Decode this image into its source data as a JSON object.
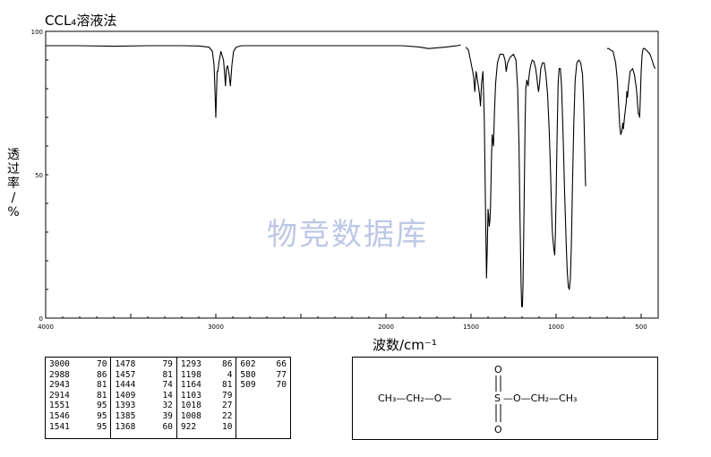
{
  "header": {
    "title": "CCL₄溶液法"
  },
  "chart_data": {
    "type": "line",
    "title": "CCL₄溶液法",
    "xlabel": "波数/cm⁻¹",
    "ylabel": "透过率",
    "ylabel_prefix": "%/",
    "xlim": [
      4000,
      400
    ],
    "ylim": [
      0,
      100
    ],
    "x_ticks": [
      4000,
      3500,
      3000,
      2500,
      2000,
      1500,
      1000,
      500
    ],
    "x_tick_labels": [
      "4000",
      "3000",
      "2000",
      "1500",
      "1000",
      "500"
    ],
    "x_tick_label_values": [
      4000,
      3000,
      2000,
      1500,
      1000,
      500
    ],
    "y_tick_labels": [
      "100",
      "50",
      "0"
    ],
    "y_tick_label_values": [
      100,
      50,
      0
    ],
    "grid": false,
    "series": [
      {
        "segments": [
          [
            [
              4000,
              95
            ],
            [
              3800,
              95
            ],
            [
              3600,
              94.8
            ],
            [
              3400,
              95
            ],
            [
              3200,
              95
            ],
            [
              3100,
              94.9
            ],
            [
              3040,
              94.5
            ],
            [
              3020,
              93
            ],
            [
              3010,
              88
            ],
            [
              3004,
              78
            ],
            [
              3000,
              70
            ],
            [
              2996,
              79
            ],
            [
              2992,
              86
            ],
            [
              2988,
              86
            ],
            [
              2982,
              89
            ],
            [
              2970,
              93
            ],
            [
              2955,
              90
            ],
            [
              2948,
              85
            ],
            [
              2943,
              81
            ],
            [
              2938,
              87
            ],
            [
              2930,
              88
            ],
            [
              2922,
              85
            ],
            [
              2914,
              81
            ],
            [
              2906,
              88
            ],
            [
              2896,
              93
            ],
            [
              2880,
              94.5
            ],
            [
              2850,
              95
            ],
            [
              2700,
              95
            ],
            [
              2500,
              95
            ],
            [
              2300,
              95
            ],
            [
              2100,
              95
            ],
            [
              1900,
              95
            ],
            [
              1800,
              94.5
            ],
            [
              1750,
              94
            ],
            [
              1650,
              94.5
            ],
            [
              1580,
              95
            ],
            [
              1560,
              95.3
            ]
          ],
          [
            [
              1530,
              94.5
            ],
            [
              1515,
              93.5
            ],
            [
              1500,
              89
            ],
            [
              1490,
              86
            ],
            [
              1484,
              84
            ],
            [
              1478,
              79
            ],
            [
              1470,
              86
            ],
            [
              1462,
              83
            ],
            [
              1457,
              81
            ],
            [
              1450,
              78
            ],
            [
              1444,
              74
            ],
            [
              1438,
              82
            ],
            [
              1430,
              86
            ],
            [
              1422,
              70
            ],
            [
              1415,
              40
            ],
            [
              1409,
              14
            ],
            [
              1404,
              25
            ],
            [
              1400,
              38
            ],
            [
              1397,
              36
            ],
            [
              1393,
              32
            ],
            [
              1389,
              34
            ],
            [
              1385,
              39
            ],
            [
              1380,
              55
            ],
            [
              1376,
              64
            ],
            [
              1372,
              62
            ],
            [
              1368,
              60
            ],
            [
              1362,
              72
            ],
            [
              1355,
              82
            ],
            [
              1345,
              89
            ],
            [
              1330,
              92
            ],
            [
              1310,
              92
            ],
            [
              1300,
              90
            ],
            [
              1293,
              86
            ],
            [
              1285,
              89
            ],
            [
              1270,
              91
            ],
            [
              1250,
              92
            ],
            [
              1236,
              90
            ],
            [
              1226,
              80
            ],
            [
              1218,
              60
            ],
            [
              1212,
              35
            ],
            [
              1206,
              12
            ],
            [
              1202,
              4
            ],
            [
              1198,
              4
            ],
            [
              1194,
              12
            ],
            [
              1188,
              40
            ],
            [
              1182,
              68
            ],
            [
              1178,
              80
            ],
            [
              1172,
              83
            ],
            [
              1168,
              82
            ],
            [
              1164,
              81
            ],
            [
              1158,
              85
            ],
            [
              1150,
              88
            ],
            [
              1140,
              90
            ],
            [
              1130,
              89.5
            ],
            [
              1120,
              87
            ],
            [
              1113,
              84
            ],
            [
              1108,
              81
            ],
            [
              1103,
              79
            ],
            [
              1097,
              82
            ],
            [
              1090,
              87
            ],
            [
              1080,
              89
            ],
            [
              1070,
              89
            ],
            [
              1060,
              85
            ],
            [
              1050,
              78
            ],
            [
              1040,
              65
            ],
            [
              1032,
              50
            ],
            [
              1026,
              36
            ],
            [
              1022,
              30
            ],
            [
              1018,
              27
            ],
            [
              1013,
              24
            ],
            [
              1008,
              22
            ],
            [
              1004,
              29
            ],
            [
              1000,
              42
            ],
            [
              994,
              63
            ],
            [
              988,
              82
            ],
            [
              982,
              87
            ],
            [
              975,
              87
            ],
            [
              968,
              81
            ],
            [
              958,
              62
            ],
            [
              950,
              44
            ],
            [
              940,
              25
            ],
            [
              934,
              16
            ],
            [
              928,
              11
            ],
            [
              922,
              10
            ],
            [
              916,
              14
            ],
            [
              910,
              26
            ],
            [
              903,
              48
            ],
            [
              896,
              68
            ],
            [
              888,
              83
            ],
            [
              878,
              89
            ],
            [
              866,
              90
            ],
            [
              855,
              89
            ],
            [
              845,
              85
            ],
            [
              838,
              75
            ],
            [
              832,
              60
            ],
            [
              828,
              48
            ],
            [
              826,
              46
            ]
          ],
          [
            [
              700,
              94
            ],
            [
              690,
              94
            ],
            [
              680,
              93.5
            ],
            [
              665,
              93
            ],
            [
              650,
              89
            ],
            [
              640,
              83
            ],
            [
              632,
              74
            ],
            [
              626,
              67
            ],
            [
              620,
              64
            ],
            [
              614,
              65
            ],
            [
              608,
              68
            ],
            [
              604,
              66
            ],
            [
              598,
              70
            ],
            [
              594,
              72
            ],
            [
              588,
              75
            ],
            [
              584,
              79
            ],
            [
              580,
              77
            ],
            [
              575,
              81
            ],
            [
              565,
              86
            ],
            [
              550,
              87
            ],
            [
              540,
              85
            ],
            [
              528,
              80
            ],
            [
              520,
              74
            ],
            [
              516,
              71
            ],
            [
              512,
              71
            ],
            [
              509,
              70
            ],
            [
              505,
              76
            ],
            [
              500,
              86
            ],
            [
              494,
              92
            ],
            [
              488,
              94
            ],
            [
              478,
              94
            ],
            [
              462,
              93
            ],
            [
              448,
              92
            ],
            [
              436,
              90
            ],
            [
              426,
              88
            ],
            [
              418,
              87
            ]
          ]
        ]
      }
    ],
    "peak_table": {
      "columns": [
        [
          [
            "3000",
            "70"
          ],
          [
            "2988",
            "86"
          ],
          [
            "2943",
            "81"
          ],
          [
            "2914",
            "81"
          ],
          [
            "1551",
            "95"
          ],
          [
            "1546",
            "95"
          ],
          [
            "1541",
            "95"
          ]
        ],
        [
          [
            "1478",
            "79"
          ],
          [
            "1457",
            "81"
          ],
          [
            "1444",
            "74"
          ],
          [
            "1409",
            "14"
          ],
          [
            "1393",
            "32"
          ],
          [
            "1385",
            "39"
          ],
          [
            "1368",
            "60"
          ]
        ],
        [
          [
            "1293",
            "86"
          ],
          [
            "1198",
            "4"
          ],
          [
            "1164",
            "81"
          ],
          [
            "1103",
            "79"
          ],
          [
            "1018",
            "27"
          ],
          [
            "1008",
            "22"
          ],
          [
            "922",
            "10"
          ]
        ],
        [
          [
            "602",
            "66"
          ],
          [
            "580",
            "77"
          ],
          [
            "509",
            "70"
          ]
        ]
      ]
    }
  },
  "watermark": "物竞数据库",
  "structure": {
    "left": "CH₃—CH₂—O—",
    "sulfur": "S",
    "top_o": "O",
    "bottom_o": "O",
    "right": "—O—CH₂—CH₃"
  },
  "colors": {
    "line": "#000000",
    "watermark": "#b6c3e4"
  }
}
